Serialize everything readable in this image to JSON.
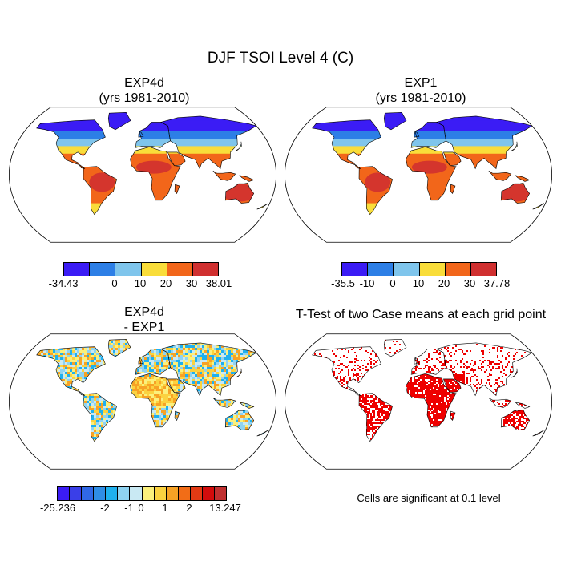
{
  "title": "DJF TSOI Level 4 (C)",
  "panels": [
    {
      "id": "exp4d",
      "title_line1": "EXP4d",
      "title_line2": "(yrs 1981-2010)",
      "palette": "temp"
    },
    {
      "id": "exp1",
      "title_line1": "EXP1",
      "title_line2": "(yrs 1981-2010)",
      "palette": "temp"
    },
    {
      "id": "diff",
      "title_line1": "EXP4d",
      "title_line2": " - EXP1",
      "palette": "diff"
    },
    {
      "id": "ttest",
      "title_line1": "T-Test of two Case means at each grid point",
      "palette": "sig"
    }
  ],
  "colorbars": {
    "exp4d": {
      "colors": [
        "#3b1cf5",
        "#2d7fe6",
        "#7fc5ec",
        "#f9dd3a",
        "#f2661a",
        "#d03030"
      ],
      "labels": [
        "-34.43",
        "0",
        "10",
        "20",
        "30",
        "38.01"
      ]
    },
    "exp1": {
      "colors": [
        "#3b1cf5",
        "#2d7fe6",
        "#7fc5ec",
        "#f9dd3a",
        "#f2661a",
        "#d03030"
      ],
      "labels": [
        "-35.5",
        "-10",
        "0",
        "10",
        "20",
        "30",
        "37.78"
      ]
    },
    "diff": {
      "colors": [
        "#3b1cf5",
        "#3a3fe8",
        "#3068e6",
        "#2f8de6",
        "#1fb0ee",
        "#8fd3f1",
        "#c9e9f3",
        "#fbf07c",
        "#fbd240",
        "#f7a225",
        "#f26d17",
        "#e33a14",
        "#d20c0c",
        "#c03030"
      ],
      "labels": [
        "-25.236",
        "-2",
        "-1",
        "0",
        "1",
        "2",
        "13.247"
      ]
    }
  },
  "significance_note": "Cells are significant at 0.1 level",
  "colors": {
    "land_outline": "#000000",
    "significant": "#ee0000"
  }
}
